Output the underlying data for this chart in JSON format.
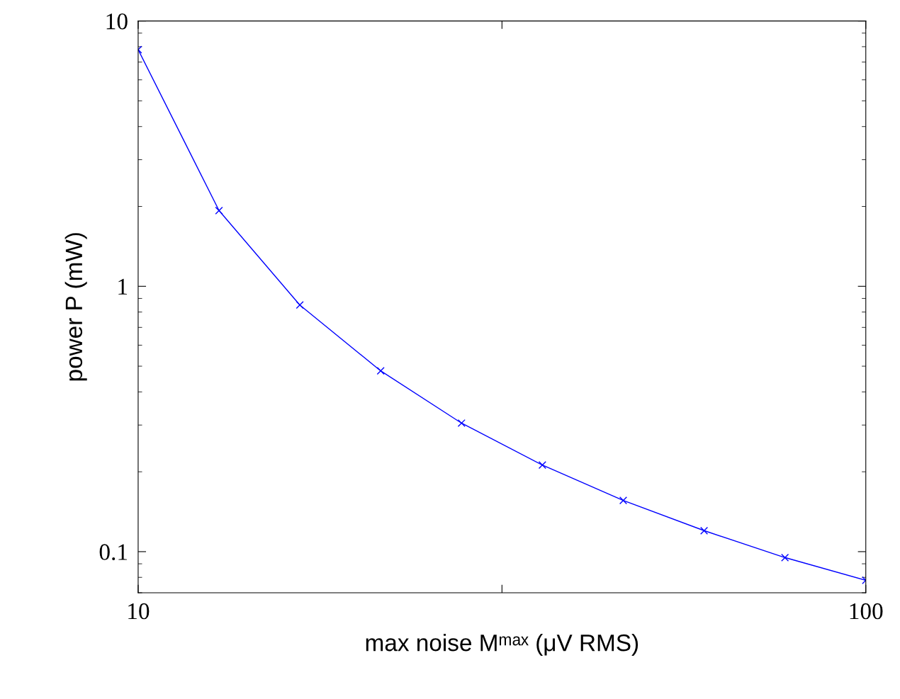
{
  "chart_data": {
    "type": "line",
    "xlabel": "max noise Mᵐᵃˣ (μV RMS)",
    "ylabel": "power P (mW)",
    "x": [
      10,
      20,
      30,
      40,
      50,
      60,
      70,
      80,
      90,
      100
    ],
    "series": [
      {
        "color": "#0000ff",
        "values": [
          7.8,
          1.93,
          0.85,
          0.48,
          0.305,
          0.212,
          0.156,
          0.12,
          0.095,
          0.078
        ]
      }
    ],
    "xlim": [
      10,
      100
    ],
    "xticks": [
      10,
      {
        "value": 55,
        "label": null
      },
      100
    ],
    "ylim": [
      0.07,
      10
    ],
    "yticks": [
      {
        "value": 0.1,
        "label": "0.1"
      },
      1,
      10
    ],
    "log": "y",
    "grid": false,
    "marker": "cross",
    "line_style": "solid"
  }
}
